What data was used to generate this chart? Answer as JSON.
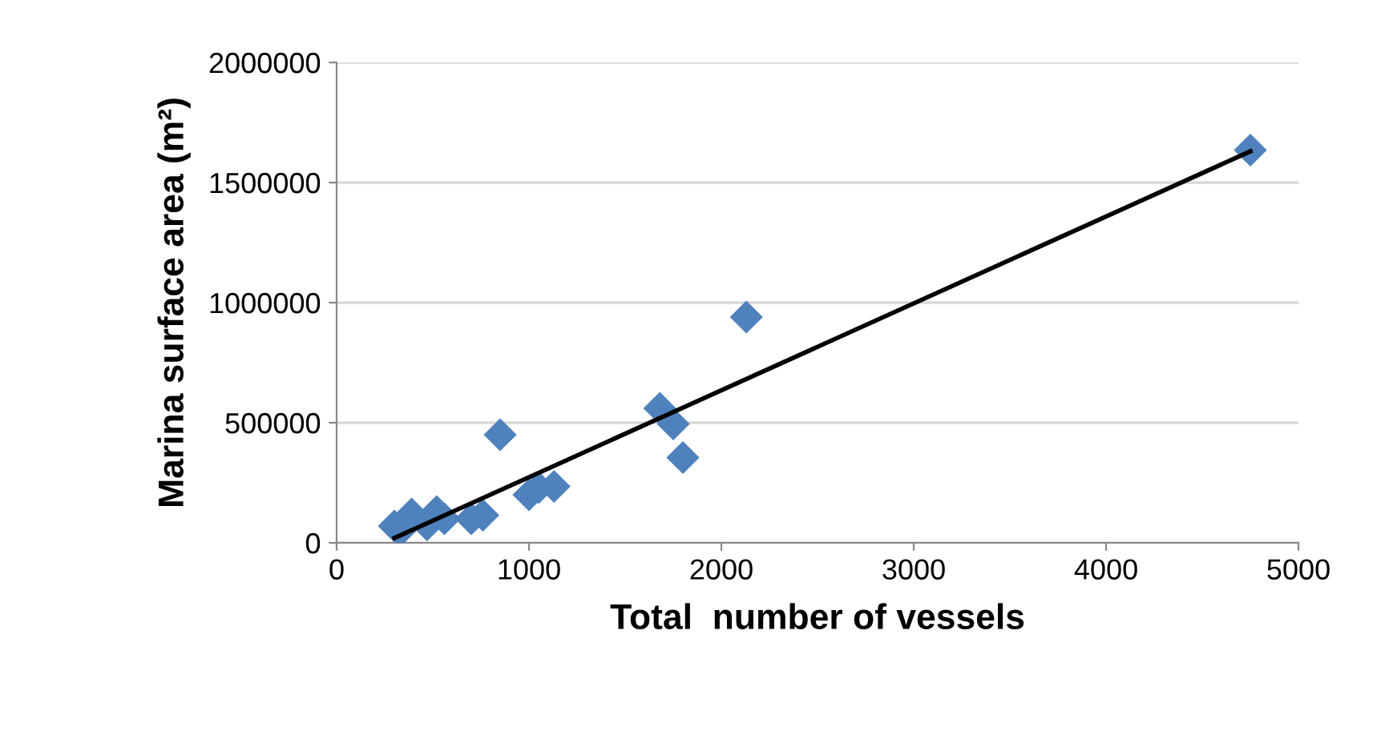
{
  "chart_data": {
    "type": "scatter",
    "xlabel": "Total  number of vessels",
    "ylabel": "Marina surface area (m²)",
    "xlim": [
      0,
      5000
    ],
    "xticks": [
      0,
      1000,
      2000,
      3000,
      4000,
      5000
    ],
    "ylim": [
      0,
      2000000
    ],
    "yticks": [
      0,
      500000,
      1000000,
      1500000,
      2000000
    ],
    "grid": "y",
    "series": [
      {
        "marker": "diamond",
        "color": "#4f81bd",
        "x": [
          300,
          330,
          390,
          470,
          520,
          560,
          700,
          760,
          850,
          1000,
          1050,
          1130,
          1680,
          1750,
          1800,
          2130,
          4750
        ],
        "values": [
          70000,
          50000,
          120000,
          75000,
          130000,
          100000,
          100000,
          115000,
          450000,
          200000,
          230000,
          235000,
          560000,
          495000,
          355000,
          940000,
          1635000
        ]
      },
      {
        "type": "line",
        "marker": "none",
        "color": "#000000",
        "x": [
          300,
          4750
        ],
        "values": [
          20000,
          1630000
        ]
      }
    ]
  }
}
